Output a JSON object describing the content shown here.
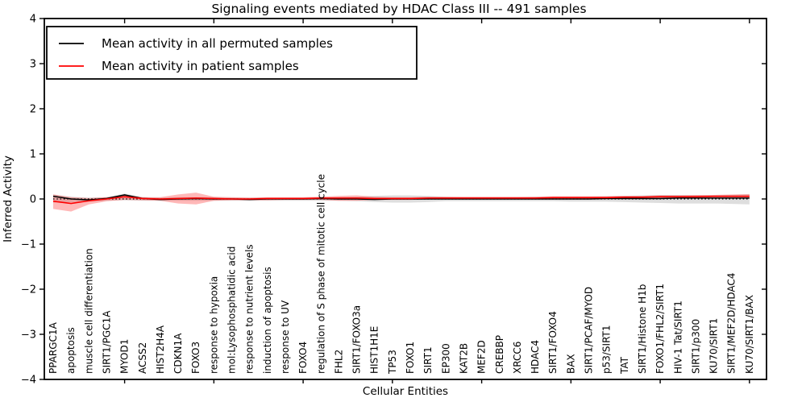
{
  "figure": {
    "title": "Signaling events mediated by HDAC Class III -- 491 samples",
    "xlabel": "Cellular Entities",
    "ylabel": "Inferred Activity"
  },
  "legend": {
    "entries": [
      {
        "label": "Mean activity in all permuted samples",
        "color": "#000000"
      },
      {
        "label": "Mean activity in patient samples",
        "color": "#ff0000"
      }
    ]
  },
  "chart_data": {
    "type": "line",
    "title": "Signaling events mediated by HDAC Class III -- 491 samples",
    "xlabel": "Cellular Entities",
    "ylabel": "Inferred Activity",
    "ylim": [
      -4,
      4
    ],
    "xlim": [
      0.5,
      41
    ],
    "grid": false,
    "legend_position": "upper left",
    "ytick_values": [
      4,
      3,
      2,
      1,
      0,
      -1,
      -2,
      -3,
      -4
    ],
    "ytick_labels": [
      "4",
      "3",
      "2",
      "1",
      "0",
      "−1",
      "−2",
      "−3",
      "−4"
    ],
    "xtick_interval": 5,
    "zero_line": {
      "y": 0,
      "style": "dotted",
      "color": "#000000"
    },
    "categories": [
      "PPARGC1A",
      "apoptosis",
      "muscle cell differentiation",
      "SIRT1/PGC1A",
      "MYOD1",
      "ACSS2",
      "HIST2H4A",
      "CDKN1A",
      "FOXO3",
      "response to hypoxia",
      "mol:Lysophosphatidic acid",
      "response to nutrient levels",
      "induction of apoptosis",
      "response to UV",
      "FOXO4",
      "regulation of S phase of mitotic cell cycle",
      "FHL2",
      "SIRT1/FOXO3a",
      "HIST1H1E",
      "TP53",
      "FOXO1",
      "SIRT1",
      "EP300",
      "KAT2B",
      "MEF2D",
      "CREBBP",
      "XRCC6",
      "HDAC4",
      "SIRT1/FOXO4",
      "BAX",
      "SIRT1/PCAF/MYOD",
      "p53/SIRT1",
      "TAT",
      "SIRT1/Histone H1b",
      "FOXO1/FHL2/SIRT1",
      "HIV-1 Tat/SIRT1",
      "SIRT1/p300",
      "KU70/SIRT1",
      "SIRT1/MEF2D/HDAC4",
      "KU70/SIRT1/BAX"
    ],
    "series": [
      {
        "id": "permuted-mean-line",
        "name": "Mean activity in all permuted samples",
        "color": "#000000",
        "style": "solid",
        "values": [
          0.06,
          0.0,
          -0.02,
          0.01,
          0.09,
          0.01,
          -0.01,
          0.0,
          0.01,
          0.0,
          0.0,
          -0.01,
          0.0,
          0.0,
          0.0,
          0.01,
          0.0,
          0.0,
          -0.01,
          0.0,
          0.0,
          0.0,
          0.0,
          0.0,
          0.0,
          0.0,
          0.0,
          0.0,
          0.0,
          0.0,
          0.0,
          0.01,
          0.01,
          0.01,
          0.01,
          0.02,
          0.02,
          0.02,
          0.02,
          0.02
        ]
      },
      {
        "id": "patient-mean-line",
        "name": "Mean activity in patient samples",
        "color": "#ff0000",
        "style": "solid",
        "values": [
          -0.05,
          -0.1,
          -0.04,
          0.0,
          0.05,
          0.01,
          0.0,
          0.01,
          0.02,
          0.01,
          0.0,
          0.0,
          0.01,
          0.01,
          0.01,
          0.02,
          0.02,
          0.02,
          0.01,
          0.01,
          0.01,
          0.02,
          0.02,
          0.02,
          0.02,
          0.02,
          0.02,
          0.02,
          0.03,
          0.03,
          0.03,
          0.03,
          0.04,
          0.04,
          0.05,
          0.05,
          0.05,
          0.06,
          0.06,
          0.06
        ]
      }
    ],
    "bands": [
      {
        "id": "permuted-range-band",
        "name": "permuted samples spread",
        "color": "#000000",
        "opacity": 0.13,
        "hi": [
          0.1,
          0.05,
          0.03,
          0.04,
          0.12,
          0.04,
          0.03,
          0.04,
          0.04,
          0.04,
          0.03,
          0.03,
          0.03,
          0.03,
          0.03,
          0.04,
          0.04,
          0.05,
          0.07,
          0.08,
          0.08,
          0.07,
          0.05,
          0.04,
          0.04,
          0.04,
          0.04,
          0.05,
          0.05,
          0.05,
          0.05,
          0.06,
          0.07,
          0.08,
          0.09,
          0.09,
          0.08,
          0.08,
          0.09,
          0.1
        ],
        "lo": [
          -0.08,
          -0.07,
          -0.06,
          -0.04,
          -0.03,
          -0.04,
          -0.04,
          -0.04,
          -0.04,
          -0.04,
          -0.04,
          -0.04,
          -0.04,
          -0.04,
          -0.04,
          -0.04,
          -0.04,
          -0.05,
          -0.07,
          -0.08,
          -0.08,
          -0.07,
          -0.05,
          -0.05,
          -0.05,
          -0.05,
          -0.05,
          -0.05,
          -0.05,
          -0.06,
          -0.06,
          -0.06,
          -0.07,
          -0.08,
          -0.09,
          -0.1,
          -0.1,
          -0.1,
          -0.11,
          -0.12
        ]
      },
      {
        "id": "patient-range-band",
        "name": "patient samples spread",
        "color": "#ff0000",
        "opacity": 0.28,
        "hi": [
          0.1,
          0.04,
          0.02,
          0.04,
          0.09,
          0.04,
          0.04,
          0.1,
          0.14,
          0.05,
          0.04,
          0.03,
          0.04,
          0.04,
          0.04,
          0.05,
          0.07,
          0.08,
          0.05,
          0.04,
          0.04,
          0.05,
          0.05,
          0.05,
          0.05,
          0.05,
          0.05,
          0.05,
          0.06,
          0.06,
          0.06,
          0.06,
          0.07,
          0.07,
          0.08,
          0.08,
          0.09,
          0.09,
          0.1,
          0.11
        ],
        "lo": [
          -0.22,
          -0.28,
          -0.12,
          -0.05,
          -0.02,
          -0.03,
          -0.04,
          -0.1,
          -0.12,
          -0.04,
          -0.03,
          -0.03,
          -0.03,
          -0.02,
          -0.02,
          -0.02,
          -0.04,
          -0.04,
          -0.02,
          -0.02,
          -0.02,
          -0.01,
          -0.01,
          -0.01,
          -0.01,
          -0.01,
          -0.01,
          -0.01,
          0.0,
          0.0,
          0.0,
          0.0,
          0.01,
          0.01,
          0.02,
          0.02,
          0.02,
          0.03,
          0.03,
          0.02
        ]
      }
    ]
  }
}
